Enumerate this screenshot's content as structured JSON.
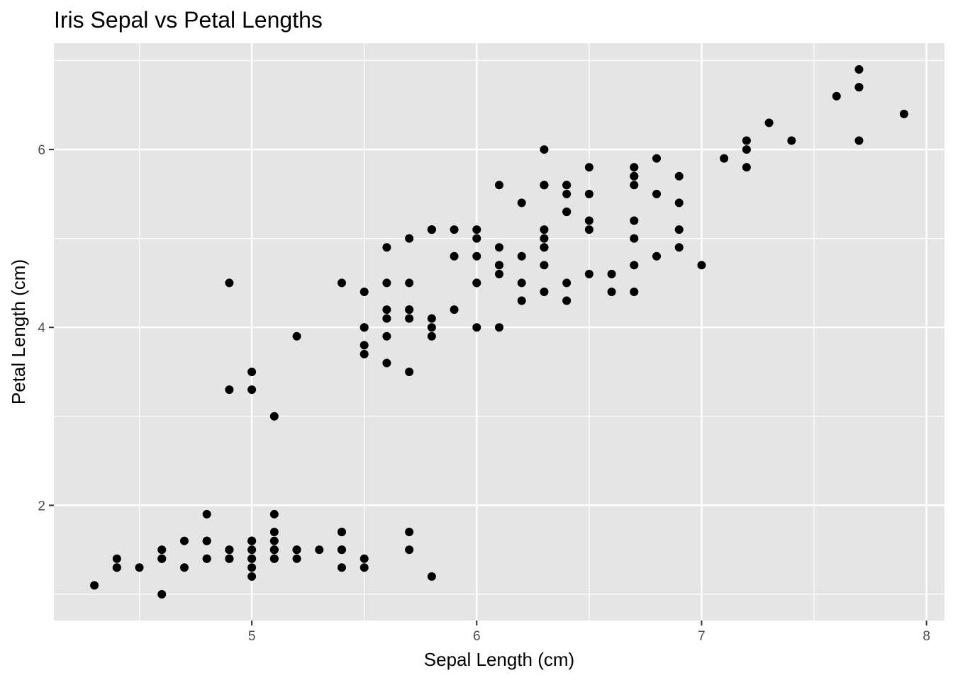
{
  "chart_data": {
    "type": "scatter",
    "title": "Iris Sepal vs Petal Lengths",
    "xlabel": "Sepal Length (cm)",
    "ylabel": "Petal Length (cm)",
    "xlim": [
      4.12,
      8.08
    ],
    "ylim": [
      0.705,
      7.195
    ],
    "x_ticks": [
      5,
      6,
      7,
      8
    ],
    "y_ticks": [
      2,
      4,
      6
    ],
    "x_minor_ticks": [
      4.5,
      5.5,
      6.5,
      7.5
    ],
    "y_minor_ticks": [
      1,
      3,
      5,
      7
    ],
    "grid": true,
    "colors": {
      "panel": "#e5e5e5",
      "grid": "#ffffff",
      "point": "#000000",
      "tick": "#333333"
    },
    "points": [
      [
        5.1,
        1.4
      ],
      [
        4.9,
        1.4
      ],
      [
        4.7,
        1.3
      ],
      [
        4.6,
        1.5
      ],
      [
        5.0,
        1.4
      ],
      [
        5.4,
        1.7
      ],
      [
        4.6,
        1.4
      ],
      [
        5.0,
        1.5
      ],
      [
        4.4,
        1.4
      ],
      [
        4.9,
        1.5
      ],
      [
        5.4,
        1.5
      ],
      [
        4.8,
        1.6
      ],
      [
        4.8,
        1.4
      ],
      [
        4.3,
        1.1
      ],
      [
        5.8,
        1.2
      ],
      [
        5.7,
        1.5
      ],
      [
        5.4,
        1.3
      ],
      [
        5.1,
        1.4
      ],
      [
        5.7,
        1.7
      ],
      [
        5.1,
        1.5
      ],
      [
        5.4,
        1.7
      ],
      [
        5.1,
        1.5
      ],
      [
        4.6,
        1.0
      ],
      [
        5.1,
        1.7
      ],
      [
        4.8,
        1.9
      ],
      [
        5.0,
        1.6
      ],
      [
        5.0,
        1.6
      ],
      [
        5.2,
        1.5
      ],
      [
        5.2,
        1.4
      ],
      [
        4.7,
        1.6
      ],
      [
        4.8,
        1.6
      ],
      [
        5.4,
        1.5
      ],
      [
        5.2,
        1.5
      ],
      [
        5.5,
        1.4
      ],
      [
        4.9,
        1.5
      ],
      [
        5.0,
        1.2
      ],
      [
        5.5,
        1.3
      ],
      [
        4.9,
        1.4
      ],
      [
        4.4,
        1.3
      ],
      [
        5.1,
        1.5
      ],
      [
        5.0,
        1.3
      ],
      [
        4.5,
        1.3
      ],
      [
        4.4,
        1.3
      ],
      [
        5.0,
        1.6
      ],
      [
        5.1,
        1.9
      ],
      [
        4.8,
        1.4
      ],
      [
        5.1,
        1.6
      ],
      [
        4.6,
        1.4
      ],
      [
        5.3,
        1.5
      ],
      [
        5.0,
        1.4
      ],
      [
        7.0,
        4.7
      ],
      [
        6.4,
        4.5
      ],
      [
        6.9,
        4.9
      ],
      [
        5.5,
        4.0
      ],
      [
        6.5,
        4.6
      ],
      [
        5.7,
        4.5
      ],
      [
        6.3,
        4.7
      ],
      [
        4.9,
        3.3
      ],
      [
        6.6,
        4.6
      ],
      [
        5.2,
        3.9
      ],
      [
        5.0,
        3.5
      ],
      [
        5.9,
        4.2
      ],
      [
        6.0,
        4.0
      ],
      [
        6.1,
        4.7
      ],
      [
        5.6,
        3.6
      ],
      [
        6.7,
        4.4
      ],
      [
        5.6,
        4.5
      ],
      [
        5.8,
        4.1
      ],
      [
        6.2,
        4.5
      ],
      [
        5.6,
        3.9
      ],
      [
        5.9,
        4.8
      ],
      [
        6.1,
        4.0
      ],
      [
        6.3,
        4.9
      ],
      [
        6.1,
        4.7
      ],
      [
        6.4,
        4.3
      ],
      [
        6.6,
        4.4
      ],
      [
        6.8,
        4.8
      ],
      [
        6.7,
        5.0
      ],
      [
        6.0,
        4.5
      ],
      [
        5.7,
        3.5
      ],
      [
        5.5,
        3.8
      ],
      [
        5.5,
        3.7
      ],
      [
        5.8,
        3.9
      ],
      [
        6.0,
        5.1
      ],
      [
        5.4,
        4.5
      ],
      [
        6.0,
        4.5
      ],
      [
        6.7,
        4.7
      ],
      [
        6.3,
        4.4
      ],
      [
        5.6,
        4.1
      ],
      [
        5.5,
        4.0
      ],
      [
        5.5,
        4.4
      ],
      [
        6.1,
        4.6
      ],
      [
        5.8,
        4.0
      ],
      [
        5.0,
        3.3
      ],
      [
        5.6,
        4.2
      ],
      [
        5.7,
        4.2
      ],
      [
        5.7,
        4.2
      ],
      [
        6.2,
        4.3
      ],
      [
        5.1,
        3.0
      ],
      [
        5.7,
        4.1
      ],
      [
        6.3,
        6.0
      ],
      [
        5.8,
        5.1
      ],
      [
        7.1,
        5.9
      ],
      [
        6.3,
        5.6
      ],
      [
        6.5,
        5.8
      ],
      [
        7.6,
        6.6
      ],
      [
        4.9,
        4.5
      ],
      [
        7.3,
        6.3
      ],
      [
        6.7,
        5.8
      ],
      [
        7.2,
        6.1
      ],
      [
        6.5,
        5.1
      ],
      [
        6.4,
        5.3
      ],
      [
        6.8,
        5.5
      ],
      [
        5.7,
        5.0
      ],
      [
        5.8,
        5.1
      ],
      [
        6.4,
        5.3
      ],
      [
        6.5,
        5.5
      ],
      [
        7.7,
        6.7
      ],
      [
        7.7,
        6.9
      ],
      [
        6.0,
        5.0
      ],
      [
        6.9,
        5.7
      ],
      [
        5.6,
        4.9
      ],
      [
        7.7,
        6.7
      ],
      [
        6.3,
        4.9
      ],
      [
        6.7,
        5.7
      ],
      [
        7.2,
        6.0
      ],
      [
        6.2,
        4.8
      ],
      [
        6.1,
        4.9
      ],
      [
        6.4,
        5.6
      ],
      [
        7.2,
        5.8
      ],
      [
        7.4,
        6.1
      ],
      [
        7.9,
        6.4
      ],
      [
        6.4,
        5.6
      ],
      [
        6.3,
        5.1
      ],
      [
        6.1,
        5.6
      ],
      [
        7.7,
        6.1
      ],
      [
        6.3,
        5.6
      ],
      [
        6.4,
        5.5
      ],
      [
        6.0,
        4.8
      ],
      [
        6.9,
        5.4
      ],
      [
        6.7,
        5.6
      ],
      [
        6.9,
        5.1
      ],
      [
        5.8,
        5.1
      ],
      [
        6.8,
        5.9
      ],
      [
        6.7,
        5.7
      ],
      [
        6.7,
        5.2
      ],
      [
        6.3,
        5.0
      ],
      [
        6.5,
        5.2
      ],
      [
        6.2,
        5.4
      ],
      [
        5.9,
        5.1
      ]
    ]
  }
}
